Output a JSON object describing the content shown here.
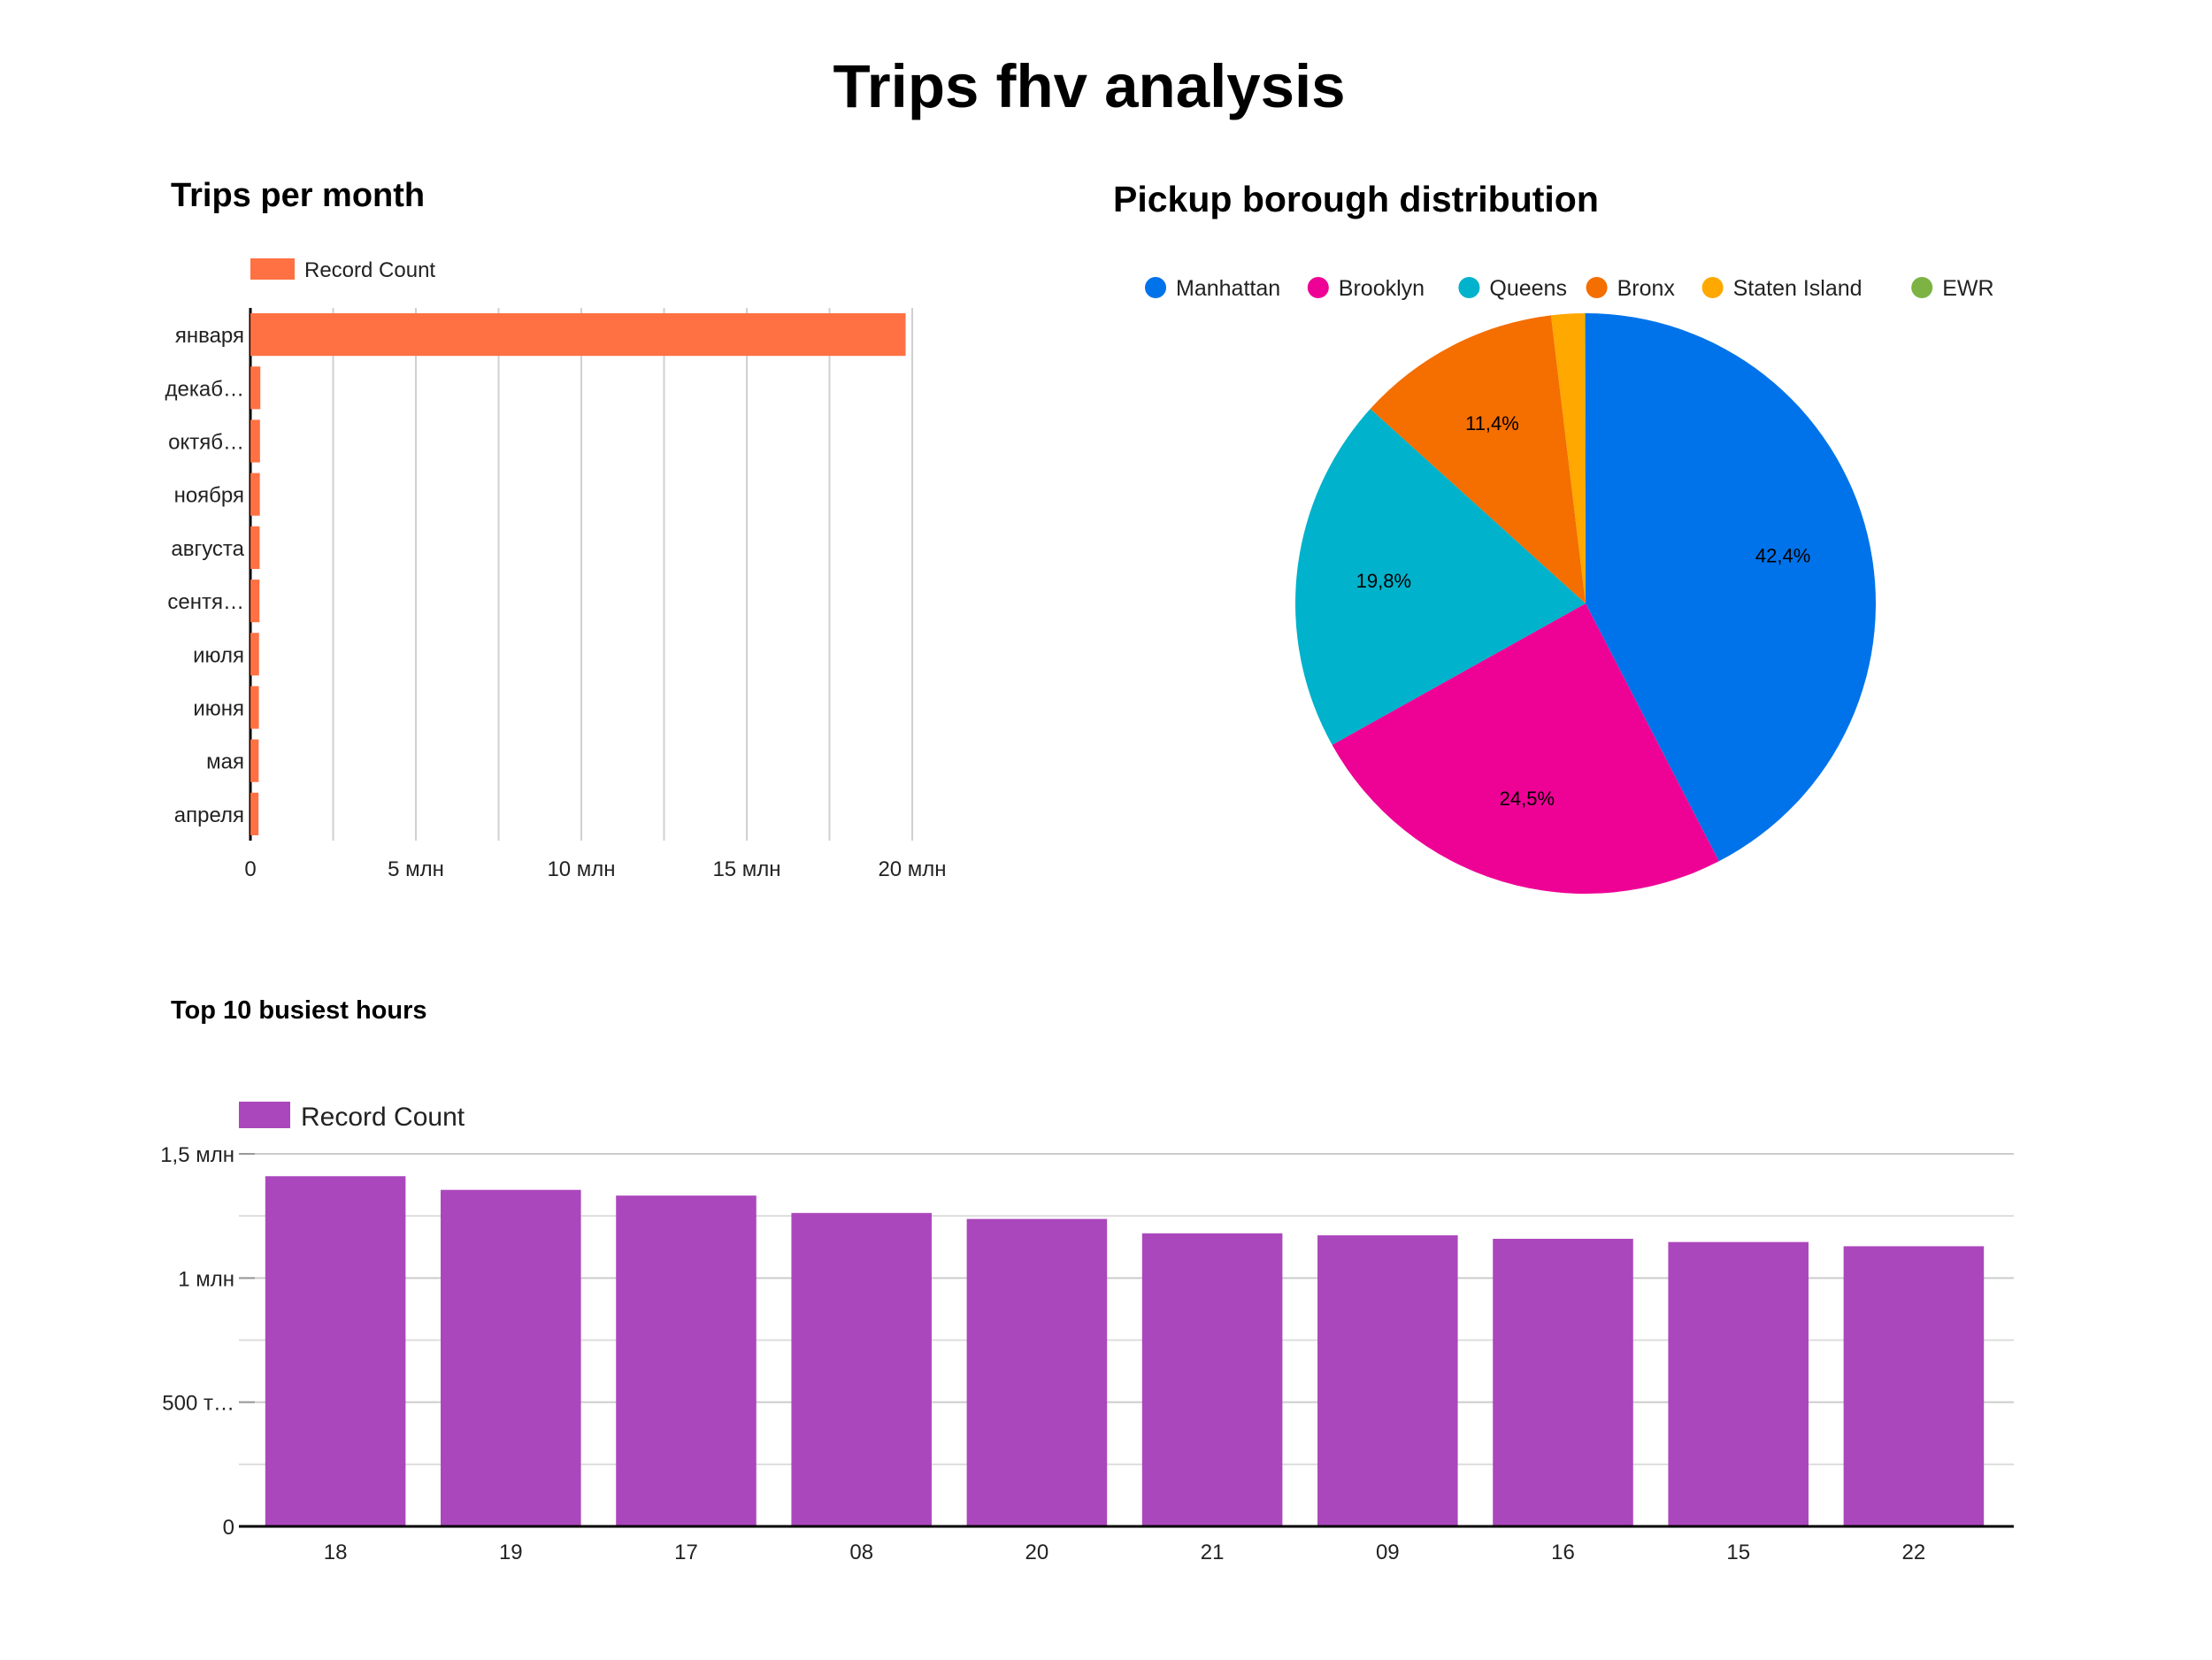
{
  "page": {
    "title": "Trips fhv analysis"
  },
  "chart_data": [
    {
      "id": "trips_per_month",
      "type": "bar",
      "orientation": "horizontal",
      "title": "Trips per month",
      "categories": [
        "января",
        "декаб…",
        "октяб…",
        "ноября",
        "августа",
        "сентя…",
        "июля",
        "июня",
        "мая",
        "апреля"
      ],
      "series": [
        {
          "name": "Record Count",
          "color": "#ff7043",
          "values": [
            19800000,
            300000,
            290000,
            285000,
            280000,
            275000,
            260000,
            255000,
            250000,
            245000
          ]
        }
      ],
      "xlim": [
        0,
        20000000
      ],
      "xticks": [
        {
          "value": 0,
          "label": "0"
        },
        {
          "value": 5000000,
          "label": "5 млн"
        },
        {
          "value": 10000000,
          "label": "10 млн"
        },
        {
          "value": 15000000,
          "label": "15 млн"
        },
        {
          "value": 20000000,
          "label": "20 млн"
        }
      ],
      "grid": true,
      "legend": "top-left"
    },
    {
      "id": "pickup_borough",
      "type": "pie",
      "title": "Pickup borough distribution",
      "slices": [
        {
          "label": "Manhattan",
          "value": 42.4,
          "display": "42,4%",
          "color": "#0073ea"
        },
        {
          "label": "Brooklyn",
          "value": 24.5,
          "display": "24,5%",
          "color": "#ee0295"
        },
        {
          "label": "Queens",
          "value": 19.8,
          "display": "19,8%",
          "color": "#00b2cb"
        },
        {
          "label": "Bronx",
          "value": 11.4,
          "display": "11,4%",
          "color": "#f46e00"
        },
        {
          "label": "Staten Island",
          "value": 1.85,
          "display": "",
          "color": "#ffa800"
        },
        {
          "label": "EWR",
          "value": 0.05,
          "display": "",
          "color": "#7cb342"
        }
      ],
      "legend": "top"
    },
    {
      "id": "top_busiest_hours",
      "type": "bar",
      "orientation": "vertical",
      "title": "Top 10 busiest hours",
      "categories": [
        "18",
        "19",
        "17",
        "08",
        "20",
        "21",
        "09",
        "16",
        "15",
        "22"
      ],
      "series": [
        {
          "name": "Record Count",
          "color": "#ab47bc",
          "values": [
            1410000,
            1355000,
            1332000,
            1262000,
            1238000,
            1180000,
            1172000,
            1158000,
            1145000,
            1128000
          ]
        }
      ],
      "ylim": [
        0,
        1500000
      ],
      "yticks": [
        {
          "value": 0,
          "label": "0"
        },
        {
          "value": 500000,
          "label": "500 т…"
        },
        {
          "value": 1000000,
          "label": "1 млн"
        },
        {
          "value": 1500000,
          "label": "1,5 млн"
        }
      ],
      "minor_gridlines": [
        250000,
        750000,
        1250000
      ],
      "grid": true,
      "legend": "top-left"
    }
  ]
}
